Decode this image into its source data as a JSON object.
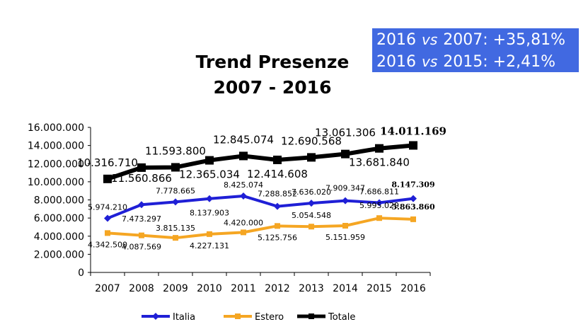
{
  "infobox": {
    "line1": {
      "left": "2016",
      "vs": "vs",
      "right": "2007:",
      "value": "+35,81%"
    },
    "line2": {
      "left": "2016",
      "vs": "vs",
      "right": "2015:",
      "value": "+2,41%"
    }
  },
  "colors": {
    "infobox_bg": "#4169e1",
    "italia": "#1f1fd6",
    "estero": "#f5a623",
    "totale": "#000000"
  },
  "chart_data": {
    "type": "line",
    "title": "Trend Presenze 2007 - 2016",
    "title_lines": [
      "Trend Presenze",
      "2007 - 2016"
    ],
    "xlabel": "",
    "ylabel": "",
    "ylim": [
      0,
      16000000
    ],
    "yticks": [
      "16.000.000",
      "14.000.000",
      "12.000.000",
      "10.000.000",
      "8.000.000",
      "6.000.000",
      "4.000.000",
      "2.000.000",
      "0"
    ],
    "categories": [
      "2007",
      "2008",
      "2009",
      "2010",
      "2011",
      "2012",
      "2013",
      "2014",
      "2015",
      "2016"
    ],
    "legend_position": "bottom",
    "series": [
      {
        "name": "Italia",
        "color": "#1f1fd6",
        "marker": "diamond",
        "values": [
          5974210,
          7473297,
          7778665,
          8137903,
          8425074,
          7288852,
          7636020,
          7909347,
          7686811,
          8147309
        ],
        "labels": [
          "5.974.210",
          "7.473.297",
          "7.778.665",
          "8.137.903",
          "8.425.074",
          "7.288.852",
          "7.636.020",
          "7.909.347",
          "7.686.811",
          "8.147.309"
        ]
      },
      {
        "name": "Estero",
        "color": "#f5a623",
        "marker": "square",
        "values": [
          4342500,
          4087569,
          3815135,
          4227131,
          4420000,
          5125756,
          5054548,
          5151959,
          5995029,
          5863860
        ],
        "labels": [
          "4.342.500",
          "4.087.569",
          "3.815.135",
          "4.227.131",
          "4.420.000",
          "5.125.756",
          "5.054.548",
          "5.151.959",
          "5.995.029",
          "5.863.860"
        ]
      },
      {
        "name": "Totale",
        "color": "#000000",
        "marker": "square",
        "values": [
          10316710,
          11560866,
          11593800,
          12365034,
          12845074,
          12414608,
          12690568,
          13061306,
          13681840,
          14011169
        ],
        "labels": [
          "10.316.710",
          "11.560.866",
          "11.593.800",
          "12.365.034",
          "12.845.074",
          "12.414.608",
          "12.690.568",
          "13.061.306",
          "13.681.840",
          "14.011.169"
        ]
      }
    ]
  }
}
